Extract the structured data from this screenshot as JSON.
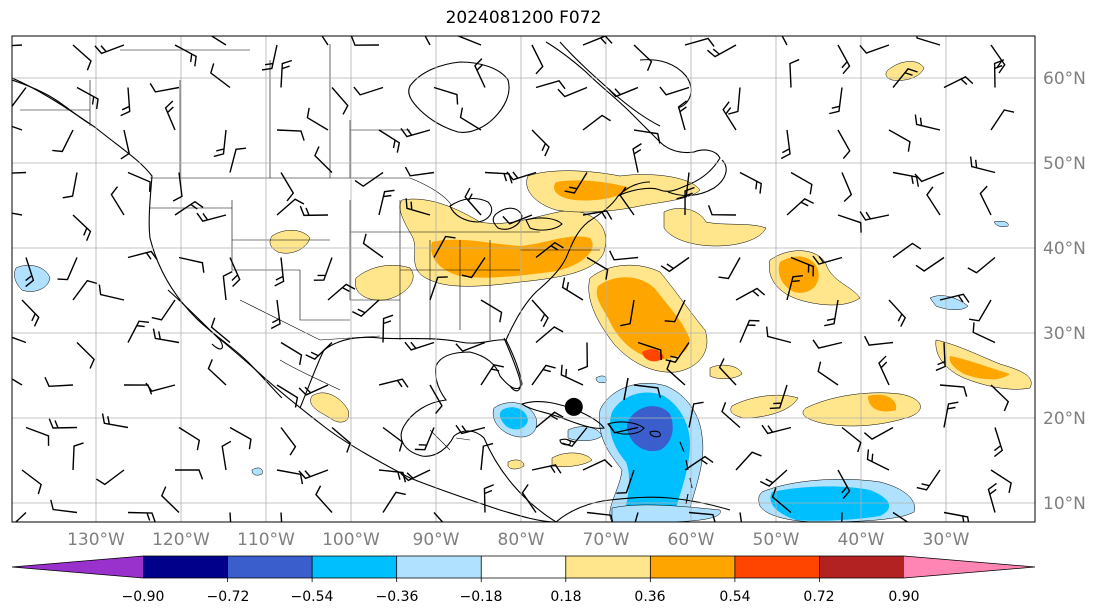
{
  "title": "2024081200 F072",
  "map": {
    "lon_range": [
      -137,
      -15
    ],
    "lat_range": [
      8,
      65
    ],
    "lon_ticks": [
      "130°W",
      "120°W",
      "110°W",
      "100°W",
      "90°W",
      "80°W",
      "70°W",
      "60°W",
      "50°W",
      "40°W",
      "30°W"
    ],
    "lat_ticks": [
      "60°N",
      "50°N",
      "40°N",
      "30°N",
      "20°N",
      "10°N"
    ],
    "grid": true,
    "marker": {
      "lon": -70,
      "lat": 21.5,
      "color": "#000000"
    }
  },
  "colorbar": {
    "labels": [
      "−0.90",
      "−0.72",
      "−0.54",
      "−0.36",
      "−0.18",
      "0.18",
      "0.36",
      "0.54",
      "0.72",
      "0.90"
    ],
    "colors": [
      "#9932cc",
      "#00008b",
      "#3a5fcd",
      "#00bfff",
      "#b0e2ff",
      "#ffffff",
      "#ffe68c",
      "#ffa500",
      "#ff4500",
      "#b22222",
      "#ff85b4"
    ]
  },
  "colors": {
    "land_line": "#000000",
    "grid_line": "#b0b0b0",
    "barb": "#000000"
  }
}
